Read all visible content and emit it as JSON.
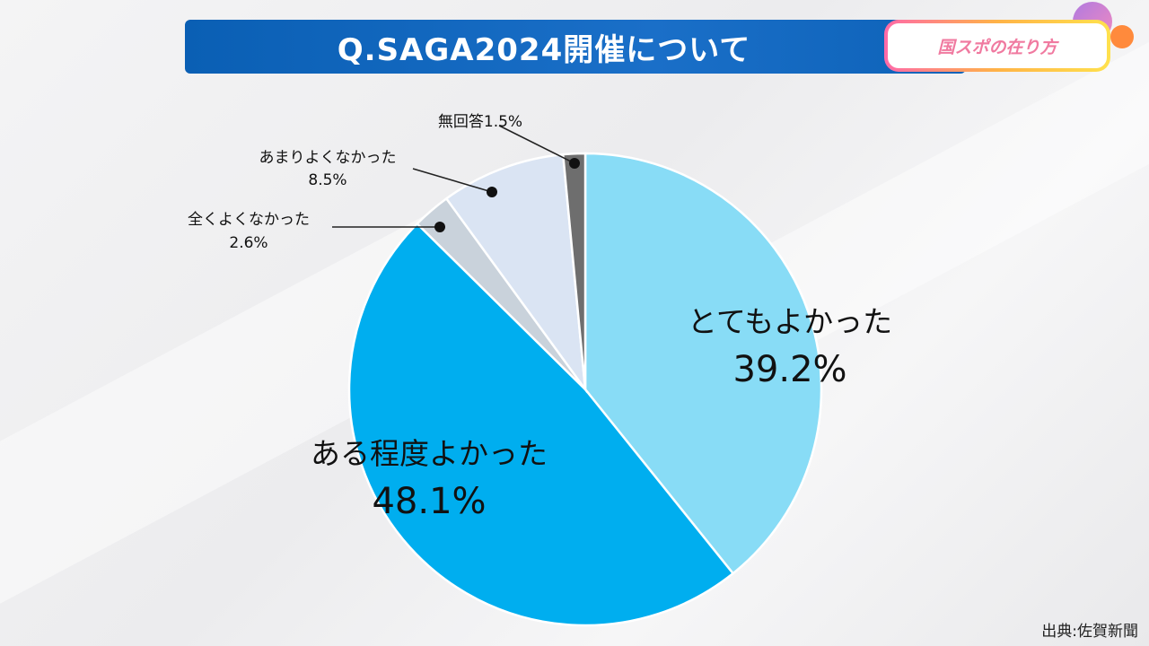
{
  "header": {
    "title": "Q.SAGA2024開催について",
    "badge": "国スポの在り方"
  },
  "source": "出典:佐賀新聞",
  "colors": {
    "title_bg": "#0a5fb4",
    "badge_text": "#f07aa0"
  },
  "chart_data": {
    "type": "pie",
    "title": "Q.SAGA2024開催について",
    "start": "12 o'clock",
    "direction": "clockwise",
    "slices": [
      {
        "label": "とてもよかった",
        "value": 39.2,
        "display": "39.2%",
        "color": "#88dcf6"
      },
      {
        "label": "ある程度よかった",
        "value": 48.1,
        "display": "48.1%",
        "color": "#00aeef"
      },
      {
        "label": "全くよくなかった",
        "value": 2.6,
        "display": "2.6%",
        "color": "#c9d2db"
      },
      {
        "label": "あまりよくなかった",
        "value": 8.5,
        "display": "8.5%",
        "color": "#dae4f3"
      },
      {
        "label": "無回答",
        "value": 1.5,
        "display": "1.5%",
        "color": "#6e6e6e"
      }
    ]
  }
}
